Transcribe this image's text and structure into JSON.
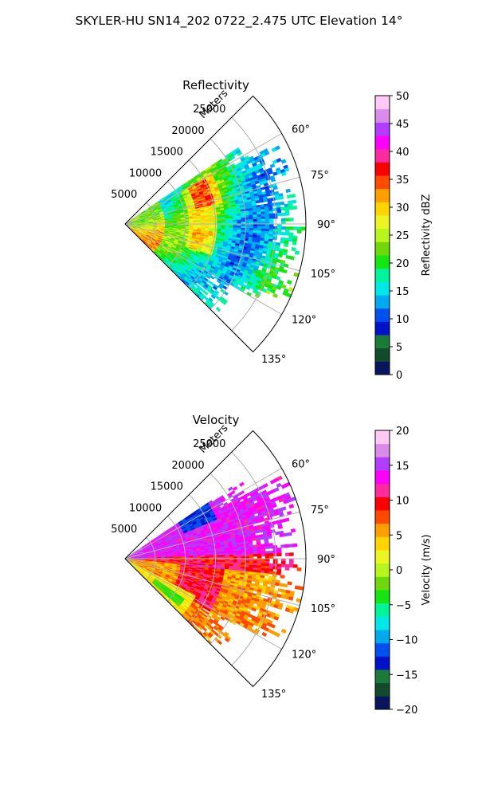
{
  "figure": {
    "suptitle": "SKYLER-HU  SN14_202  0722_2.475 UTC Elevation 14°"
  },
  "chart_data": [
    {
      "type": "heatmap",
      "projection": "polar-sector",
      "title": "Reflectivity",
      "range_label": "Meters",
      "range_ticks": [
        "5000",
        "10000",
        "15000",
        "20000",
        "25000"
      ],
      "range_tick_values": [
        5000,
        10000,
        15000,
        20000,
        25000
      ],
      "range_max": 30000,
      "azimuth_ticks": [
        "60°",
        "75°",
        "90°",
        "105°",
        "120°",
        "135°"
      ],
      "azimuth_tick_values": [
        60,
        75,
        90,
        105,
        120,
        135
      ],
      "azimuth_range": [
        45,
        135
      ],
      "grid": true,
      "colorbar": {
        "label": "Reflectivity dBZ",
        "range": [
          0,
          50
        ],
        "ticks": [
          "0",
          "5",
          "10",
          "15",
          "20",
          "25",
          "30",
          "35",
          "40",
          "45",
          "50"
        ],
        "tick_values": [
          0,
          5,
          10,
          15,
          20,
          25,
          30,
          35,
          40,
          45,
          50
        ],
        "colors": [
          "#0a1560",
          "#134a2c",
          "#1a7a3a",
          "#0012c8",
          "#0050f0",
          "#00aaf0",
          "#00e8e8",
          "#00f59a",
          "#14e614",
          "#6ed80a",
          "#b6f51e",
          "#eaf522",
          "#ffd400",
          "#ff9e00",
          "#ff4a00",
          "#ff0000",
          "#ff2aa0",
          "#ff00ff",
          "#b23cff",
          "#d88be8",
          "#ffc8f5"
        ]
      },
      "field_summary": "Sector mostly 15–25 dBZ (green/yellow-green) with 25–35 dBZ bands (yellow/orange) and scattered red cores near 35 dBZ close to the radar and at about 12000 m; echoes extend to about 25000 m."
    },
    {
      "type": "heatmap",
      "projection": "polar-sector",
      "title": "Velocity",
      "range_label": "Meters",
      "range_ticks": [
        "5000",
        "10000",
        "15000",
        "20000",
        "25000"
      ],
      "range_tick_values": [
        5000,
        10000,
        15000,
        20000,
        25000
      ],
      "range_max": 30000,
      "azimuth_ticks": [
        "60°",
        "75°",
        "90°",
        "105°",
        "120°",
        "135°"
      ],
      "azimuth_tick_values": [
        60,
        75,
        90,
        105,
        120,
        135
      ],
      "azimuth_range": [
        45,
        135
      ],
      "grid": true,
      "colorbar": {
        "label": "Velocity (m/s)",
        "range": [
          -20,
          20
        ],
        "ticks": [
          "−20",
          "−15",
          "−10",
          "−5",
          "0",
          "5",
          "10",
          "15",
          "20"
        ],
        "tick_values": [
          -20,
          -15,
          -10,
          -5,
          0,
          5,
          10,
          15,
          20
        ],
        "colors": [
          "#0a1560",
          "#134a2c",
          "#1a7a3a",
          "#0012c8",
          "#0050f0",
          "#00aaf0",
          "#00e8e8",
          "#00f59a",
          "#14e614",
          "#6ed80a",
          "#b6f51e",
          "#eaf522",
          "#ffd400",
          "#ff9e00",
          "#ff4a00",
          "#ff0000",
          "#ff2aa0",
          "#ff00ff",
          "#b23cff",
          "#d88be8",
          "#ffc8f5"
        ]
      },
      "field_summary": "Northern half (azimuth 55–90°) mostly +12 to +17 m/s (magenta/purple) with a −12 m/s (cyan) patch near azimuth 60°, 10000–16000 m; southern half (90–135°) +3 to +10 m/s (yellow/orange/red) with a small −3 m/s patch near the radar at about 130°."
    }
  ]
}
